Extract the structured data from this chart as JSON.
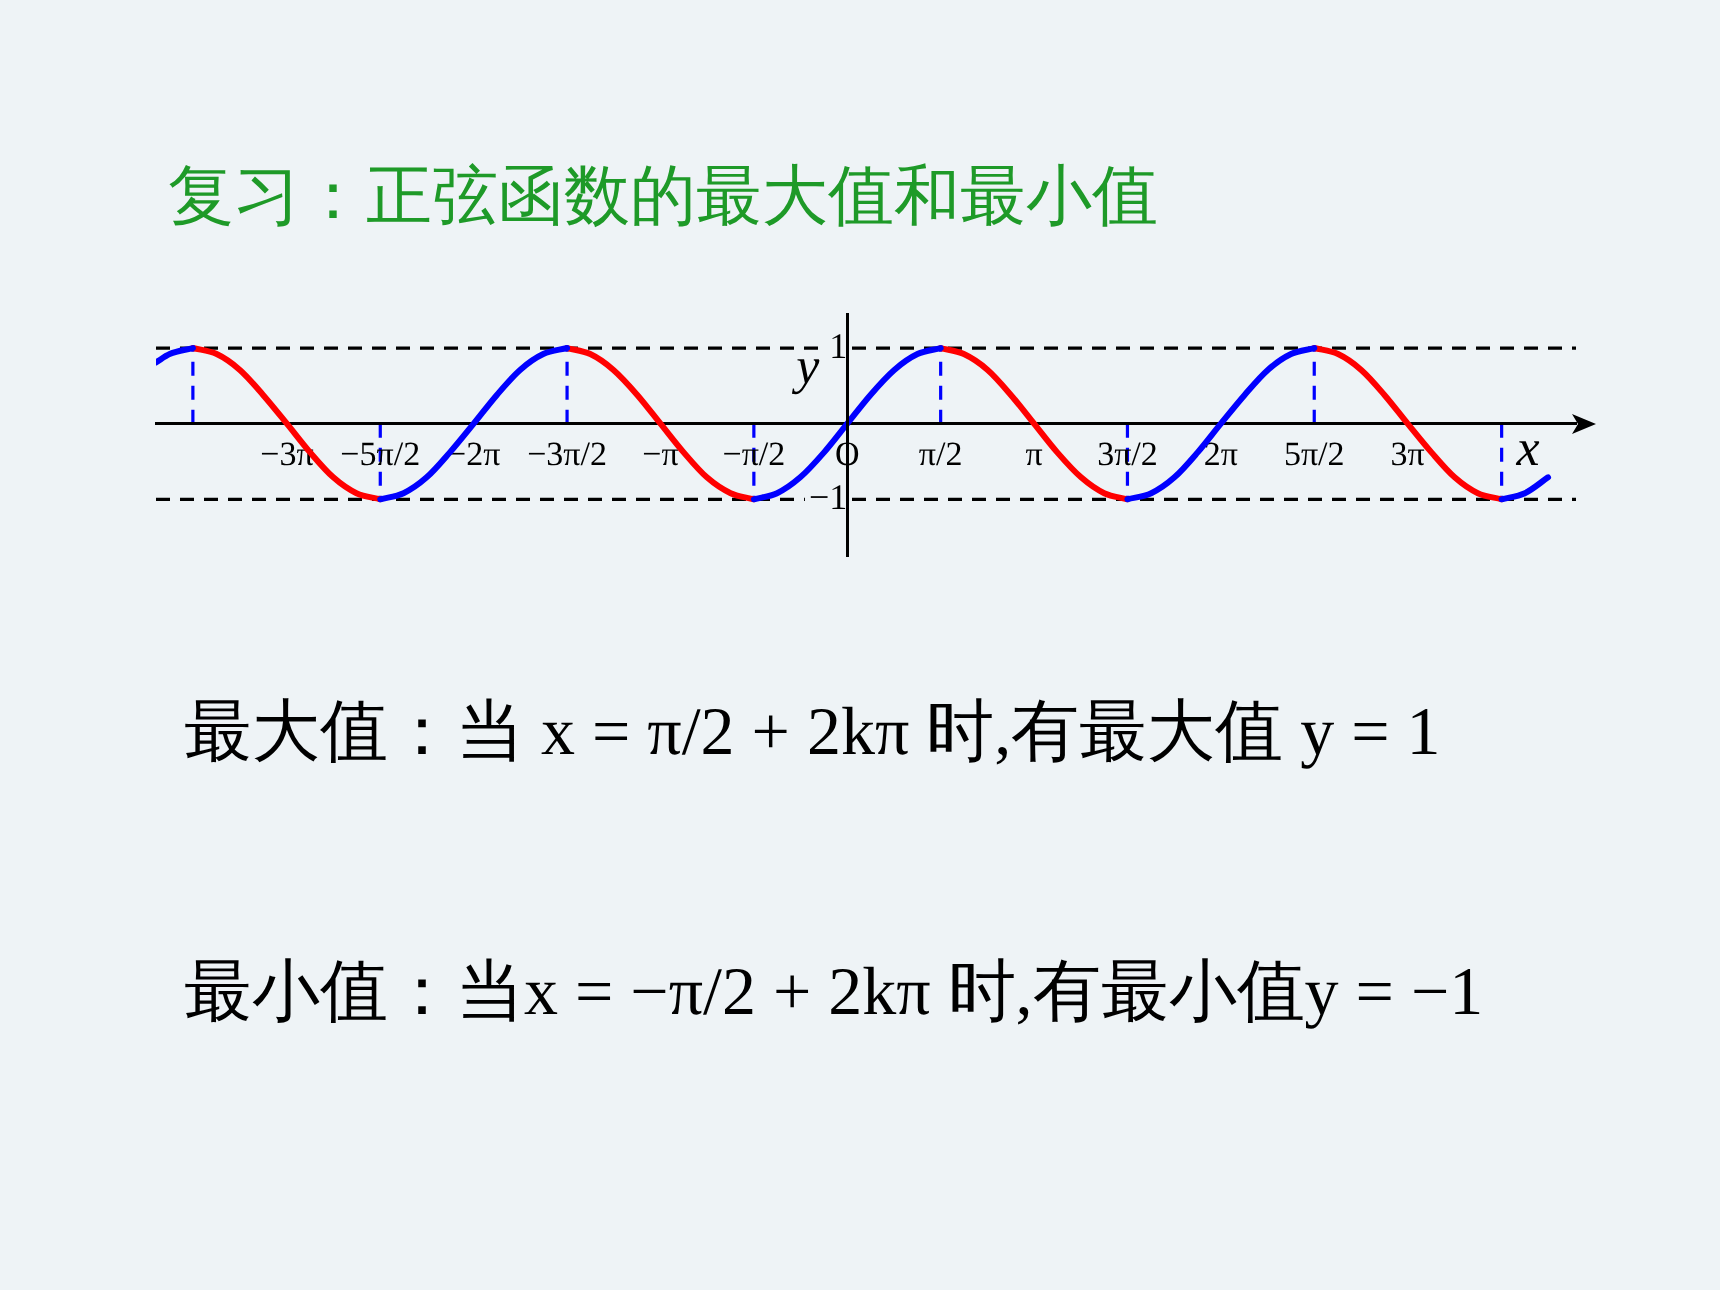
{
  "chart_data": {
    "type": "line",
    "title": "复习：正弦函数的最大值和最小值",
    "xlabel": "x",
    "ylabel": "y",
    "x": [
      -11.62,
      -11.39,
      -11,
      -10.6,
      -10.21,
      -9.82,
      -9.42,
      -9.03,
      -8.64,
      -8.25,
      -7.85,
      -7.46,
      -7.07,
      -6.68,
      -6.28,
      -5.89,
      -5.5,
      -5.11,
      -4.71,
      -4.32,
      -3.93,
      -3.53,
      -3.14,
      -2.75,
      -2.36,
      -1.96,
      -1.57,
      -1.18,
      -0.79,
      -0.39,
      0,
      0.39,
      0.79,
      1.18,
      1.57,
      1.96,
      2.36,
      2.75,
      3.14,
      3.53,
      3.93,
      4.32,
      4.71,
      5.11,
      5.5,
      5.89,
      6.28,
      6.68,
      7.07,
      7.46,
      7.85,
      8.25,
      8.64,
      9.03,
      9.42,
      9.82,
      10.21,
      10.6,
      11,
      11.39,
      11.78
    ],
    "series": [
      {
        "color": "#0000ff",
        "values": [
          0.81,
          0.92,
          1,
          null,
          null,
          null,
          null,
          null,
          null,
          null,
          -1,
          -0.92,
          -0.71,
          -0.38,
          0,
          0.38,
          0.71,
          0.92,
          1,
          null,
          null,
          null,
          null,
          null,
          null,
          null,
          -1,
          -0.92,
          -0.71,
          -0.38,
          0,
          0.38,
          0.71,
          0.92,
          1,
          null,
          null,
          null,
          null,
          null,
          null,
          null,
          -1,
          -0.92,
          -0.71,
          -0.38,
          0,
          0.38,
          0.71,
          0.92,
          1,
          null,
          null,
          null,
          null,
          null,
          null,
          null,
          -1,
          -0.92,
          -0.71
        ]
      },
      {
        "color": "#ff0000",
        "values": [
          null,
          null,
          1,
          0.92,
          0.71,
          0.38,
          0,
          -0.38,
          -0.71,
          -0.92,
          -1,
          null,
          null,
          null,
          null,
          null,
          null,
          null,
          1,
          0.92,
          0.71,
          0.38,
          0,
          -0.38,
          -0.71,
          -0.92,
          -1,
          null,
          null,
          null,
          null,
          null,
          null,
          null,
          1,
          0.92,
          0.71,
          0.38,
          0,
          -0.38,
          -0.71,
          -0.92,
          -1,
          null,
          null,
          null,
          null,
          null,
          null,
          null,
          1,
          0.92,
          0.71,
          0.38,
          0,
          -0.38,
          -0.71,
          -0.92,
          -1,
          null,
          null
        ]
      }
    ],
    "xlim": [
      -11.62,
      12.25
    ],
    "ylim": [
      -1.75,
      1.45
    ],
    "xticks": [
      {
        "value": -9.42,
        "label": "−3π"
      },
      {
        "value": -7.85,
        "label": "−5π/2"
      },
      {
        "value": -6.28,
        "label": "−2π"
      },
      {
        "value": -4.71,
        "label": "−3π/2"
      },
      {
        "value": -3.14,
        "label": "−π"
      },
      {
        "value": -1.57,
        "label": "−π/2"
      },
      {
        "value": 0,
        "label": "O"
      },
      {
        "value": 1.57,
        "label": "π/2"
      },
      {
        "value": 3.14,
        "label": "π"
      },
      {
        "value": 4.71,
        "label": "3π/2"
      },
      {
        "value": 6.28,
        "label": "2π"
      },
      {
        "value": 7.85,
        "label": "5π/2"
      },
      {
        "value": 9.42,
        "label": "3π"
      }
    ],
    "yticks": [
      1,
      {
        "value": -1,
        "label": "−1"
      }
    ],
    "ref_lines": [
      {
        "axis": "y",
        "value": 1,
        "color": "#000000",
        "line_style": "dashed"
      },
      {
        "axis": "y",
        "value": -1,
        "color": "#000000",
        "line_style": "dashed"
      },
      {
        "axis": "x",
        "value": -11,
        "color": "#0000ff",
        "line_style": "dashed"
      },
      {
        "axis": "x",
        "value": -7.85,
        "color": "#0000ff",
        "line_style": "dashed"
      },
      {
        "axis": "x",
        "value": -4.71,
        "color": "#0000ff",
        "line_style": "dashed"
      },
      {
        "axis": "x",
        "value": -1.57,
        "color": "#0000ff",
        "line_style": "dashed"
      },
      {
        "axis": "x",
        "value": 1.57,
        "color": "#0000ff",
        "line_style": "dashed"
      },
      {
        "axis": "x",
        "value": 4.71,
        "color": "#0000ff",
        "line_style": "dashed"
      },
      {
        "axis": "x",
        "value": 7.85,
        "color": "#0000ff",
        "line_style": "dashed"
      },
      {
        "axis": "x",
        "value": 11,
        "color": "#0000ff",
        "line_style": "dashed"
      }
    ],
    "annotations": [
      "最大值：当 x = π/2 + 2kπ 时,有最大值 y = 1",
      "最小值：当x = −π/2 + 2kπ 时,有最小值y = −1"
    ],
    "grid": false,
    "legend": false,
    "marker": "none",
    "line_style": "solid"
  }
}
